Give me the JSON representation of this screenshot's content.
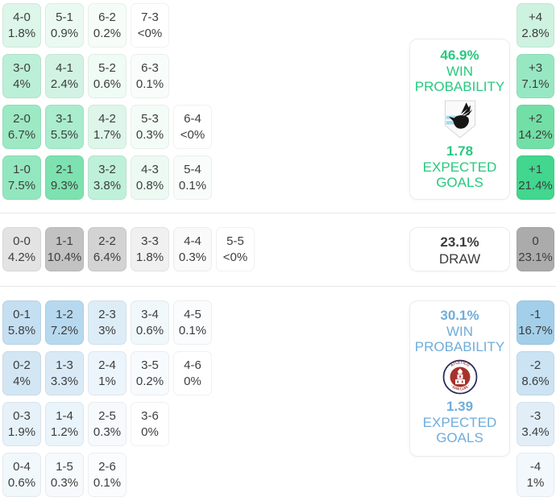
{
  "colors": {
    "home_accent": "#27c97e",
    "away_accent": "#6fadda",
    "cell_text": "#3d3d3d",
    "divider": "#e8e8e8",
    "draw_margin_bg": "#ababab"
  },
  "home_panel": {
    "win_probability": "46.9%",
    "win_line1": "WIN",
    "win_line2": "PROBABILITY",
    "expected_goals": "1.78",
    "goals_line1": "EXPECTED",
    "goals_line2": "GOALS",
    "logo_icon": "minnesota-united-crest"
  },
  "draw_panel": {
    "probability": "23.1%",
    "label": "DRAW"
  },
  "away_panel": {
    "win_probability": "30.1%",
    "win_line1": "WIN",
    "win_line2": "PROBABILITY",
    "expected_goals": "1.39",
    "goals_line1": "EXPECTED",
    "goals_line2": "GOALS",
    "logo_icon": "atletico-san-luis-crest"
  },
  "chart_data": {
    "type": "heatmap",
    "description_labels": [
      "WIN PROBABILITY",
      "EXPECTED GOALS",
      "DRAW"
    ],
    "home_win_probability": "46.9%",
    "home_expected_goals": "1.78",
    "draw_probability": "23.1%",
    "away_win_probability": "30.1%",
    "away_expected_goals": "1.39",
    "home_score_rows": [
      [
        {
          "score": "4-0",
          "pct": "1.8%",
          "bg": "#dcf6e9"
        },
        {
          "score": "5-1",
          "pct": "0.9%",
          "bg": "#eafaf2"
        },
        {
          "score": "6-2",
          "pct": "0.2%",
          "bg": "#f6fdf9"
        },
        {
          "score": "7-3",
          "pct": "<0%",
          "bg": "#ffffff"
        }
      ],
      [
        {
          "score": "3-0",
          "pct": "4%",
          "bg": "#bcefd7"
        },
        {
          "score": "4-1",
          "pct": "2.4%",
          "bg": "#d2f3e3"
        },
        {
          "score": "5-2",
          "pct": "0.6%",
          "bg": "#effbf5"
        },
        {
          "score": "6-3",
          "pct": "0.1%",
          "bg": "#f8fdfb"
        }
      ],
      [
        {
          "score": "2-0",
          "pct": "6.7%",
          "bg": "#9ce9c4"
        },
        {
          "score": "3-1",
          "pct": "5.5%",
          "bg": "#aaecce"
        },
        {
          "score": "4-2",
          "pct": "1.7%",
          "bg": "#ddf6e9"
        },
        {
          "score": "5-3",
          "pct": "0.3%",
          "bg": "#f4fcf8"
        },
        {
          "score": "6-4",
          "pct": "<0%",
          "bg": "#ffffff"
        }
      ],
      [
        {
          "score": "1-0",
          "pct": "7.5%",
          "bg": "#93e7bf"
        },
        {
          "score": "2-1",
          "pct": "9.3%",
          "bg": "#7de2af"
        },
        {
          "score": "3-2",
          "pct": "3.8%",
          "bg": "#bff0d9"
        },
        {
          "score": "4-3",
          "pct": "0.8%",
          "bg": "#ecfaf3"
        },
        {
          "score": "5-4",
          "pct": "0.1%",
          "bg": "#f8fdfb"
        }
      ]
    ],
    "draw_score_row": [
      [
        {
          "score": "0-0",
          "pct": "4.2%",
          "bg": "#e3e3e3"
        },
        {
          "score": "1-1",
          "pct": "10.4%",
          "bg": "#c2c2c2"
        },
        {
          "score": "2-2",
          "pct": "6.4%",
          "bg": "#d3d3d3"
        },
        {
          "score": "3-3",
          "pct": "1.8%",
          "bg": "#f0f0f0"
        },
        {
          "score": "4-4",
          "pct": "0.3%",
          "bg": "#fafafa"
        },
        {
          "score": "5-5",
          "pct": "<0%",
          "bg": "#ffffff"
        }
      ]
    ],
    "away_score_rows": [
      [
        {
          "score": "0-1",
          "pct": "5.8%",
          "bg": "#c5dff2"
        },
        {
          "score": "1-2",
          "pct": "7.2%",
          "bg": "#b7d9ef"
        },
        {
          "score": "2-3",
          "pct": "3%",
          "bg": "#ddedf8"
        },
        {
          "score": "3-4",
          "pct": "0.6%",
          "bg": "#f1f8fc"
        },
        {
          "score": "4-5",
          "pct": "0.1%",
          "bg": "#fafcfe"
        }
      ],
      [
        {
          "score": "0-2",
          "pct": "4%",
          "bg": "#d3e6f4"
        },
        {
          "score": "1-3",
          "pct": "3.3%",
          "bg": "#d9eaf6"
        },
        {
          "score": "2-4",
          "pct": "1%",
          "bg": "#ecf5fb"
        },
        {
          "score": "3-5",
          "pct": "0.2%",
          "bg": "#f8fbfd"
        },
        {
          "score": "4-6",
          "pct": "0%",
          "bg": "#ffffff"
        }
      ],
      [
        {
          "score": "0-3",
          "pct": "1.9%",
          "bg": "#e6f1fa"
        },
        {
          "score": "1-4",
          "pct": "1.2%",
          "bg": "#eaf4fb"
        },
        {
          "score": "2-5",
          "pct": "0.3%",
          "bg": "#f6fafd"
        },
        {
          "score": "3-6",
          "pct": "0%",
          "bg": "#ffffff"
        }
      ],
      [
        {
          "score": "0-4",
          "pct": "0.6%",
          "bg": "#f1f8fc"
        },
        {
          "score": "1-5",
          "pct": "0.3%",
          "bg": "#f6fafd"
        },
        {
          "score": "2-6",
          "pct": "0.1%",
          "bg": "#fafcfe"
        }
      ]
    ],
    "home_goal_diff_margins": [
      {
        "score": "+4",
        "pct": "2.8%",
        "bg": "#cef2e0"
      },
      {
        "score": "+3",
        "pct": "7.1%",
        "bg": "#97e8c2"
      },
      {
        "score": "+2",
        "pct": "14.2%",
        "bg": "#72dfa7"
      },
      {
        "score": "+1",
        "pct": "21.4%",
        "bg": "#42d68e"
      }
    ],
    "draw_goal_diff_margin": [
      {
        "score": "0",
        "pct": "23.1%",
        "bg": "#ababab"
      }
    ],
    "away_goal_diff_margins": [
      {
        "score": "-1",
        "pct": "16.7%",
        "bg": "#a3cfea"
      },
      {
        "score": "-2",
        "pct": "8.6%",
        "bg": "#cbe3f3"
      },
      {
        "score": "-3",
        "pct": "3.4%",
        "bg": "#e1eef8"
      },
      {
        "score": "-4",
        "pct": "1%",
        "bg": "#f2f8fc"
      }
    ]
  }
}
